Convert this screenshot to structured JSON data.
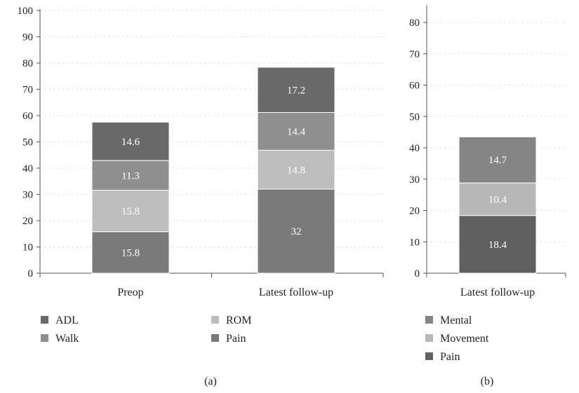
{
  "chart_data": [
    {
      "type": "bar",
      "stacked": true,
      "panel_label": "(a)",
      "categories": [
        "Preop",
        "Latest follow-up"
      ],
      "ylim": [
        0,
        100
      ],
      "yticks": [
        "0",
        "10",
        "20",
        "30",
        "40",
        "50",
        "60",
        "70",
        "80",
        "90",
        "100"
      ],
      "grid": true,
      "series": [
        {
          "name": "Pain",
          "values": [
            15.8,
            32
          ],
          "color": "#7a7a7a"
        },
        {
          "name": "ROM",
          "values": [
            15.8,
            14.8
          ],
          "color": "#bdbdbd"
        },
        {
          "name": "Walk",
          "values": [
            11.3,
            14.4
          ],
          "color": "#8f8f8f"
        },
        {
          "name": "ADL",
          "values": [
            14.6,
            17.2
          ],
          "color": "#6a6a6a"
        }
      ],
      "data_labels": [
        [
          "15.8",
          "32"
        ],
        [
          "15.8",
          "14.8"
        ],
        [
          "11.3",
          "14.4"
        ],
        [
          "14.6",
          "17.2"
        ]
      ],
      "legend": [
        "ADL",
        "Walk",
        "ROM",
        "Pain"
      ],
      "legend_colors": [
        "#6a6a6a",
        "#8f8f8f",
        "#bdbdbd",
        "#7a7a7a"
      ]
    },
    {
      "type": "bar",
      "stacked": true,
      "panel_label": "(b)",
      "categories": [
        "Latest follow-up"
      ],
      "ylim": [
        0,
        85
      ],
      "yticks": [
        "0",
        "10",
        "20",
        "30",
        "40",
        "50",
        "60",
        "70",
        "80"
      ],
      "grid": true,
      "series": [
        {
          "name": "Pain",
          "values": [
            18.4
          ],
          "color": "#5f5f5f"
        },
        {
          "name": "Movement",
          "values": [
            10.4
          ],
          "color": "#b7b7b7"
        },
        {
          "name": "Mental",
          "values": [
            14.7
          ],
          "color": "#858585"
        }
      ],
      "data_labels": [
        [
          "18.4"
        ],
        [
          "10.4"
        ],
        [
          "14.7"
        ]
      ],
      "legend": [
        "Mental",
        "Movement",
        "Pain"
      ],
      "legend_colors": [
        "#858585",
        "#b7b7b7",
        "#5f5f5f"
      ]
    }
  ]
}
